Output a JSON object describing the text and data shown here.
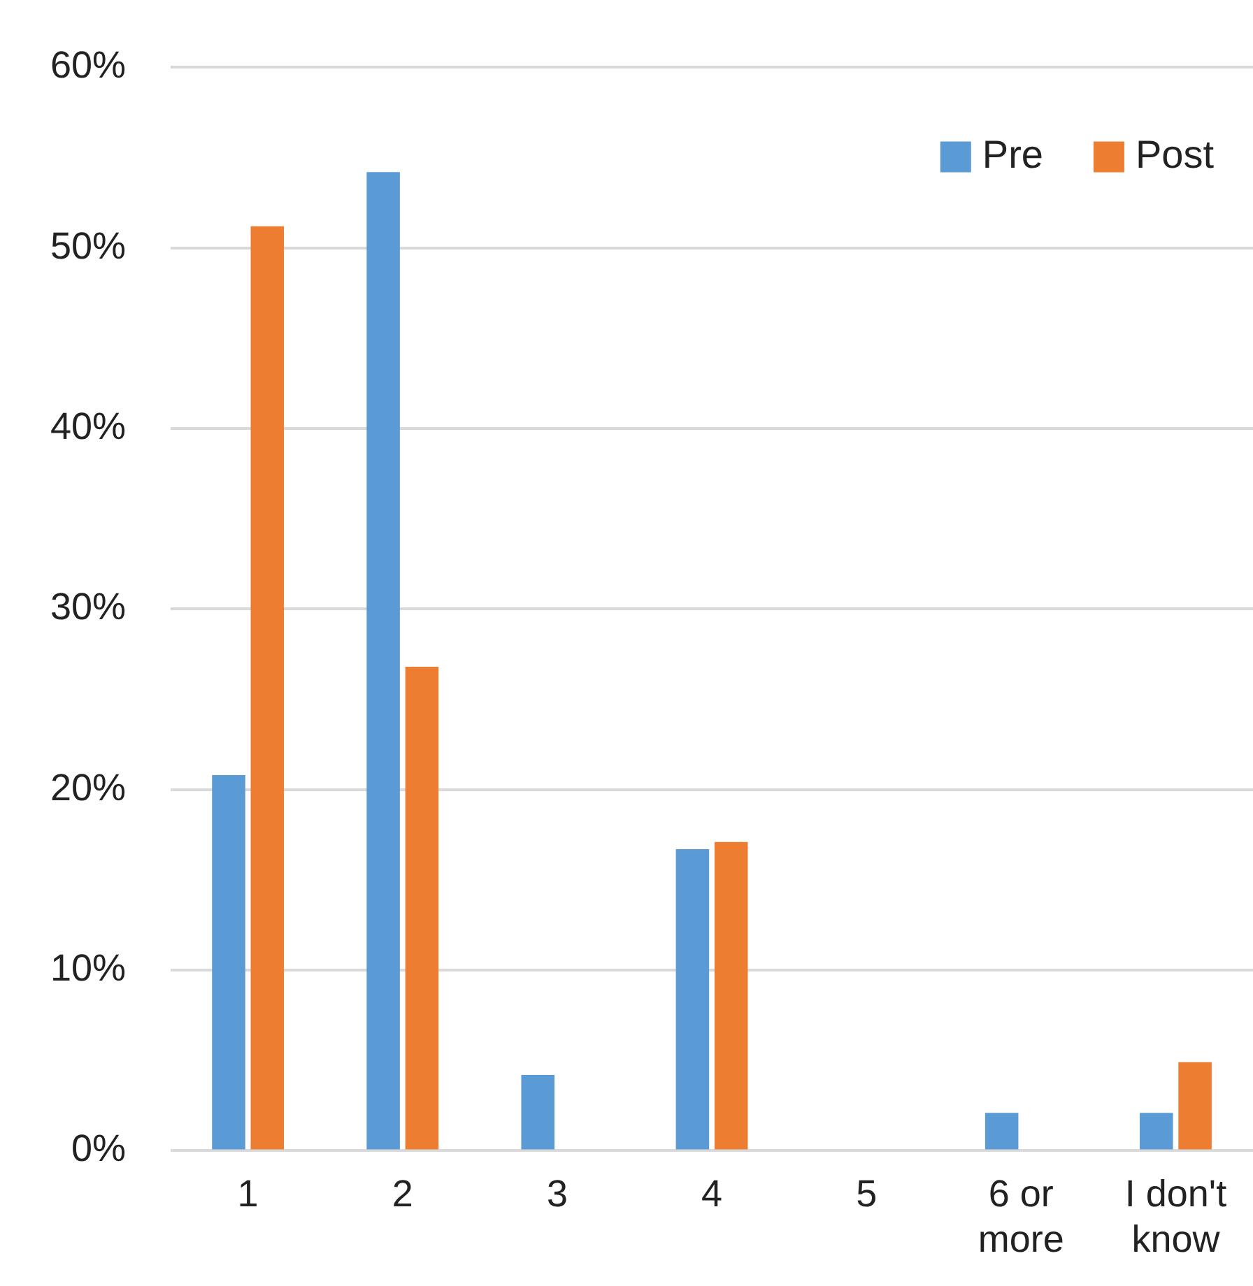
{
  "chart_data": {
    "type": "bar",
    "categories": [
      "1",
      "2",
      "3",
      "4",
      "5",
      "6 or more",
      "I don't know"
    ],
    "series": [
      {
        "name": "Pre",
        "color": "#5b9bd5",
        "values": [
          20.8,
          54.2,
          4.2,
          16.7,
          0,
          2.1,
          2.1
        ]
      },
      {
        "name": "Post",
        "color": "#ed7d31",
        "values": [
          51.2,
          26.8,
          0,
          17.1,
          0,
          0,
          4.9
        ]
      }
    ],
    "ylim": [
      0,
      60
    ],
    "yticks": [
      {
        "value": 0,
        "label": "0%"
      },
      {
        "value": 10,
        "label": "10%"
      },
      {
        "value": 20,
        "label": "20%"
      },
      {
        "value": 30,
        "label": "30%"
      },
      {
        "value": 40,
        "label": "40%"
      },
      {
        "value": 50,
        "label": "50%"
      },
      {
        "value": 60,
        "label": "60%"
      }
    ],
    "grid": "y",
    "legend": "top right"
  }
}
